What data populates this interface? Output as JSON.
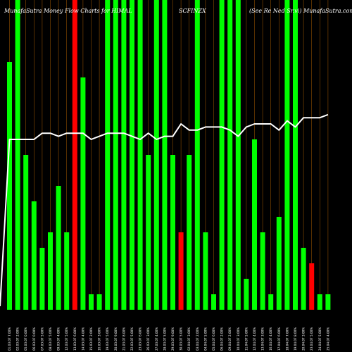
{
  "header": {
    "left": "MunafaSutra  Money Flow  Charts for HIMAL",
    "middle": "SCFINZX",
    "right": "(See Re    Ned Sr.vi) MunafaSutra.com"
  },
  "colors": {
    "background": "#000000",
    "up": "#00ff00",
    "down": "#ff0000",
    "line": "#ffffff",
    "grid": "#ff8c00"
  },
  "chart_data": {
    "type": "bar",
    "grid": true,
    "ylim": [
      0,
      100
    ],
    "categories": [
      "01.03.07 7.00%",
      "02.03.07 2.00%",
      "05.03.07 0.00%",
      "06.03.07 0.00%",
      "07.03.07 5.00%",
      "08.03.07 5.00%",
      "09.03.07 4.00%",
      "12.03.07 5.00%",
      "13.03.07 6.00%",
      "14.03.07 4.00%",
      "15.03.07 2.00%",
      "16.03.07 3.00%",
      "19.03.07 5.00%",
      "20.03.07 9.00%",
      "21.03.07 8.00%",
      "22.03.07 5.00%",
      "23.03.07 6.00%",
      "26.03.07 3.00%",
      "27.03.07 4.00%",
      "28.03.07 5.00%",
      "29.03.07 9.00%",
      "30.03.07 5.00%",
      "02.04.07 3.00%",
      "03.04.07 2.00%",
      "04.04.07 5.00%",
      "05.04.07 6.00%",
      "06.04.07 2.00%",
      "09.04.07 2.00%",
      "10.04.07 3.00%",
      "11.04.07 5.00%",
      "12.04.07 4.00%",
      "13.04.07 3.00%",
      "16.04.07 4.00%",
      "17.04.07 6.00%",
      "18.04.07 7.00%",
      "19.04.07 8.00%",
      "20.04.07 3.00%",
      "23.04.07 5.00%",
      "24.04.07 5.00%",
      "25.04.07 4.00%"
    ],
    "series": [
      {
        "values": [
          80,
          100,
          50,
          35,
          20,
          25,
          40,
          25,
          100,
          75,
          5,
          5,
          100,
          100,
          100,
          100,
          100,
          50,
          100,
          100,
          50,
          25,
          50,
          100,
          25,
          5,
          100,
          100,
          100,
          10,
          55,
          25,
          5,
          30,
          100,
          100,
          20,
          15,
          5,
          5
        ],
        "direction": [
          "up",
          "up",
          "up",
          "up",
          "up",
          "up",
          "up",
          "up",
          "down",
          "up",
          "up",
          "up",
          "up",
          "up",
          "up",
          "up",
          "up",
          "up",
          "up",
          "up",
          "up",
          "down",
          "up",
          "up",
          "up",
          "up",
          "up",
          "up",
          "up",
          "up",
          "up",
          "up",
          "up",
          "up",
          "up",
          "up",
          "up",
          "down",
          "up",
          "up"
        ]
      },
      {
        "type": "line",
        "values": [
          55,
          55,
          55,
          55,
          57,
          57,
          56,
          57,
          57,
          57,
          55,
          56,
          57,
          57,
          57,
          56,
          55,
          57,
          55,
          56,
          56,
          60,
          58,
          58,
          59,
          59,
          59,
          58,
          56,
          59,
          60,
          60,
          60,
          58,
          61,
          59,
          62,
          62,
          62,
          63
        ]
      }
    ]
  }
}
